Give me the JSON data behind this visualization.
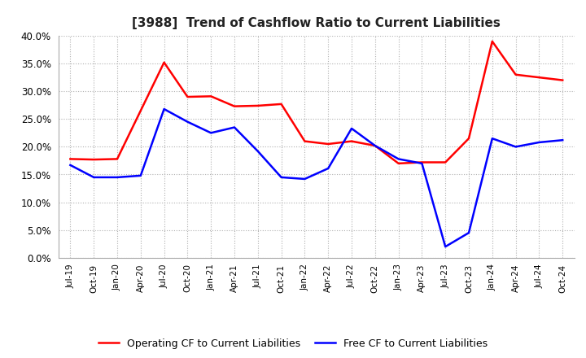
{
  "title": "[3988]  Trend of Cashflow Ratio to Current Liabilities",
  "x_labels": [
    "Jul-19",
    "Oct-19",
    "Jan-20",
    "Apr-20",
    "Jul-20",
    "Oct-20",
    "Jan-21",
    "Apr-21",
    "Jul-21",
    "Oct-21",
    "Jan-22",
    "Apr-22",
    "Jul-22",
    "Oct-22",
    "Jan-23",
    "Apr-23",
    "Jul-23",
    "Oct-23",
    "Jan-24",
    "Apr-24",
    "Jul-24",
    "Oct-24"
  ],
  "operating_cf": [
    0.178,
    0.177,
    0.178,
    0.265,
    0.352,
    0.29,
    0.291,
    0.273,
    0.274,
    0.277,
    0.21,
    0.205,
    0.21,
    0.202,
    0.17,
    0.172,
    0.172,
    0.215,
    0.39,
    0.33,
    0.325,
    0.32
  ],
  "free_cf": [
    0.167,
    0.145,
    0.145,
    0.148,
    0.268,
    0.245,
    0.225,
    0.235,
    0.192,
    0.145,
    0.142,
    0.161,
    0.233,
    0.202,
    0.178,
    0.17,
    0.02,
    0.045,
    0.215,
    0.2,
    0.208,
    0.212
  ],
  "operating_color": "#FF0000",
  "free_color": "#0000FF",
  "ylim": [
    0.0,
    0.4
  ],
  "yticks": [
    0.0,
    0.05,
    0.1,
    0.15,
    0.2,
    0.25,
    0.3,
    0.35,
    0.4
  ],
  "legend_labels": [
    "Operating CF to Current Liabilities",
    "Free CF to Current Liabilities"
  ],
  "background_color": "#ffffff",
  "grid_color": "#b0b0b0"
}
